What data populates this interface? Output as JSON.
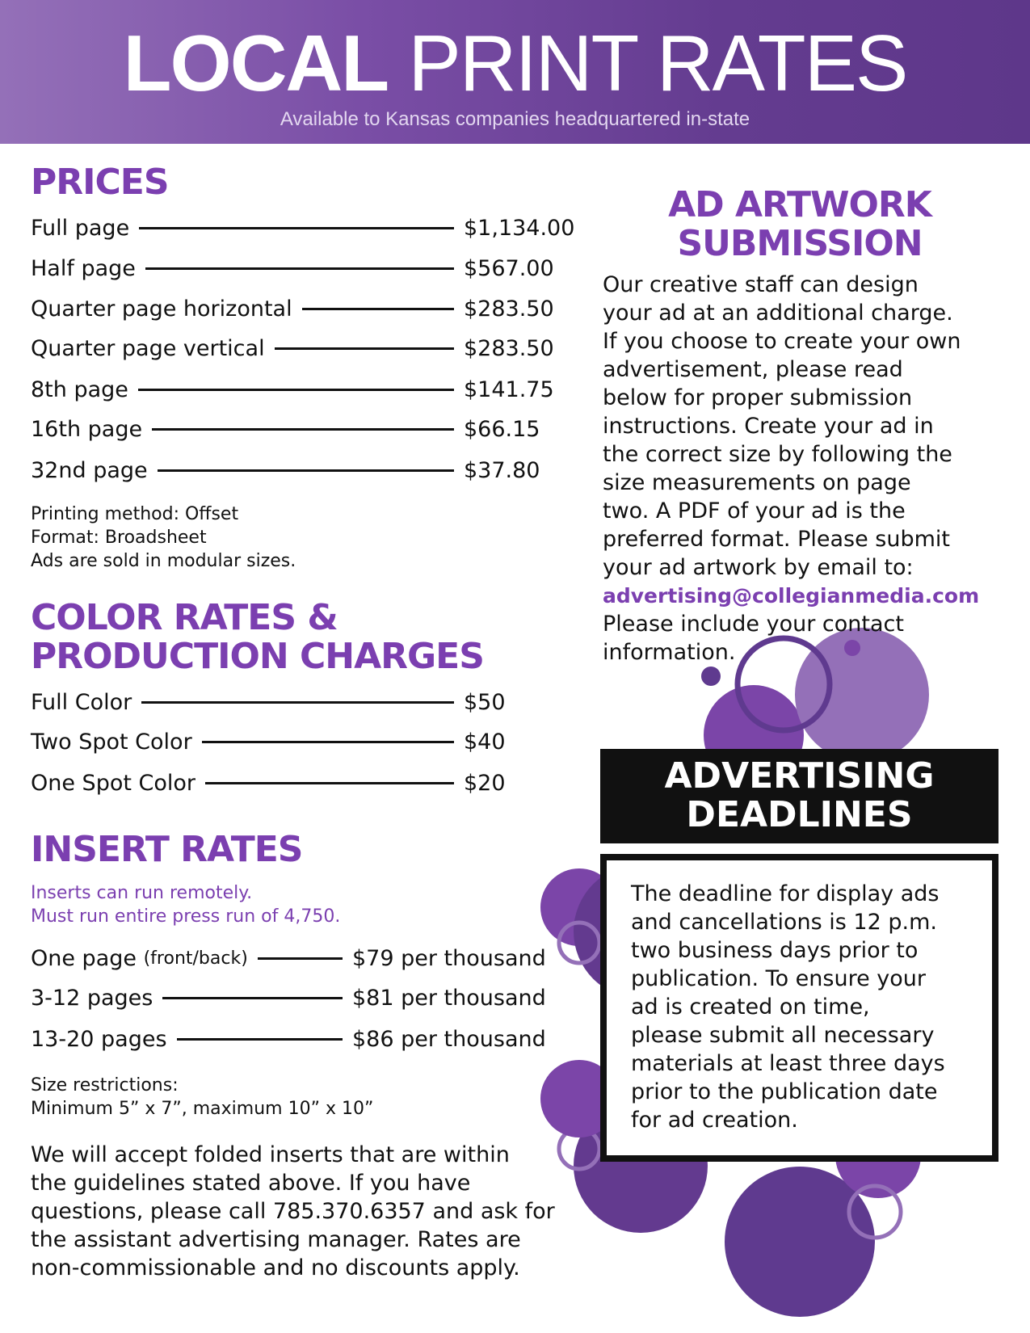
{
  "header": {
    "title_bold": "LOCAL",
    "title_rest": "PRINT RATES",
    "subtitle": "Available to Kansas companies headquartered in-state"
  },
  "prices": {
    "heading": "PRICES",
    "rows": [
      {
        "label": "Full page",
        "value": "$1,134.00"
      },
      {
        "label": "Half page",
        "value": "$567.00"
      },
      {
        "label": "Quarter page horizontal",
        "value": "$283.50"
      },
      {
        "label": "Quarter page vertical",
        "value": "$283.50"
      },
      {
        "label": "8th page",
        "value": "$141.75"
      },
      {
        "label": "16th page",
        "value": "$66.15"
      },
      {
        "label": "32nd page",
        "value": "$37.80"
      }
    ],
    "notes": [
      "Printing method: Offset",
      "Format: Broadsheet",
      "Ads are sold in modular sizes."
    ]
  },
  "color": {
    "heading_line1": "COLOR RATES &",
    "heading_line2": "PRODUCTION CHARGES",
    "rows": [
      {
        "label": "Full Color",
        "value": "$50"
      },
      {
        "label": "Two Spot Color",
        "value": "$40"
      },
      {
        "label": "One Spot Color",
        "value": "$20"
      }
    ]
  },
  "insert": {
    "heading": "INSERT RATES",
    "notes": [
      "Inserts can run remotely.",
      "Must run entire press run of 4,750."
    ],
    "rows": [
      {
        "label": "One page",
        "label_small": "(front/back)",
        "value": "$79 per thousand"
      },
      {
        "label": "3-12 pages",
        "label_small": "",
        "value": "$81 per thousand"
      },
      {
        "label": "13-20 pages",
        "label_small": "",
        "value": "$86 per thousand"
      }
    ],
    "size_notes": [
      "Size restrictions:",
      "Minimum 5” x 7”, maximum 10” x 10”"
    ],
    "paragraph": [
      "We will accept folded inserts that are within",
      "the guidelines stated above. If you have",
      "questions, please call 785.370.6357 and ask for",
      "the assistant advertising manager. Rates are",
      "non-commissionable and no discounts apply."
    ]
  },
  "artwork": {
    "heading_line1": "AD ARTWORK",
    "heading_line2": "SUBMISSION",
    "lines": [
      "Our creative staff can design",
      "your ad at an additional charge.",
      "If you choose to create your own",
      "advertisement, please read",
      "below for proper submission",
      "instructions. Create your ad in",
      "the correct size by following the",
      "size measurements on page",
      "two. A PDF of your ad is the",
      "preferred format. Please submit",
      "your ad artwork by email to:"
    ],
    "email": "advertising@collegianmedia.com",
    "after": [
      "Please include your contact",
      "information."
    ]
  },
  "deadlines": {
    "heading_line1": "ADVERTISING",
    "heading_line2": "DEADLINES",
    "lines": [
      "The deadline for display ads",
      "and cancellations is 12 p.m.",
      "two business days prior to",
      "publication. To ensure your",
      "ad is created on time,",
      "please submit all necessary",
      "materials at least three days",
      "prior to the publication date",
      "for ad creation."
    ]
  },
  "colors": {
    "purple": "#7b3fb0",
    "header_start": "#9470b8",
    "header_end": "#5e378a",
    "black": "#111111"
  }
}
